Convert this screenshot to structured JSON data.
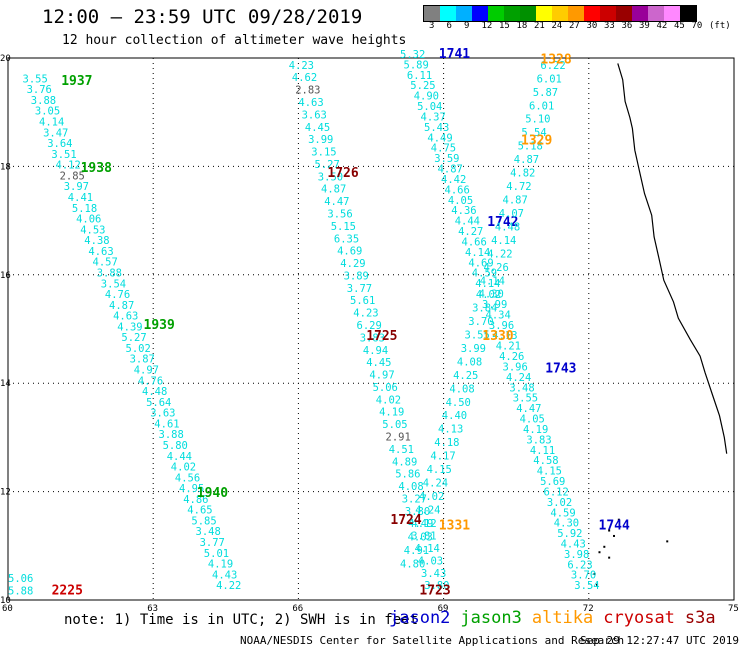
{
  "header": {
    "title": "12:00 – 23:59 UTC 09/28/2019",
    "subtitle": "12 hour collection of altimeter wave heights"
  },
  "scale": {
    "colors": [
      "#808080",
      "#00ffff",
      "#00b0ff",
      "#0000ff",
      "#00cc00",
      "#00a000",
      "#009000",
      "#ffff00",
      "#ffcc00",
      "#ff9900",
      "#ff0000",
      "#cc0000",
      "#990000",
      "#990099",
      "#cc66cc",
      "#ff88ff",
      "#000000"
    ],
    "labels": [
      "3",
      "6",
      "9",
      "12",
      "15",
      "18",
      "21",
      "24",
      "27",
      "30",
      "33",
      "36",
      "39",
      "42",
      "45",
      "70",
      "(ft)"
    ]
  },
  "axes": {
    "x_ticks": [
      "60",
      "63",
      "66",
      "69",
      "72",
      "75"
    ],
    "y_ticks": [
      "20",
      "18",
      "16",
      "14",
      "12",
      "10"
    ]
  },
  "footer": {
    "note": "note: 1) Time is in UTC; 2) SWH is in feet",
    "credit": "NOAA/NESDIS Center for Satellite Applications and Research",
    "timestamp": "Sep 29 12:27:47 UTC 2019"
  },
  "legend": [
    {
      "name": "jason2",
      "color": "#0000cc"
    },
    {
      "name": "jason3",
      "color": "#00a000"
    },
    {
      "name": "altika",
      "color": "#ff9900"
    },
    {
      "name": "cryosat",
      "color": "#cc0000"
    },
    {
      "name": "s3a",
      "color": "#990000"
    }
  ],
  "colors": {
    "swh": "#00dddd",
    "swh_low": "#555555",
    "jason2": "#0000cc",
    "jason3": "#00a000",
    "altika": "#ff9900",
    "cryosat": "#cc0000",
    "s3a": "#880000"
  },
  "tracks": [
    {
      "time": "1937",
      "satellite": "jason3",
      "time_lon": 61.1,
      "time_lat": 19.5,
      "start": [
        60.3,
        19.55
      ],
      "end": [
        64.3,
        10.2
      ],
      "values": [
        "3.55",
        "3.76",
        "3.88",
        "3.05",
        "4.14",
        "3.47",
        "3.64",
        "3.51",
        "4.12",
        "2.85",
        "3.97",
        "4.41",
        "5.18",
        "4.06",
        "4.53",
        "4.38",
        "4.63",
        "4.57",
        "3.88",
        "3.54",
        "4.76",
        "4.87",
        "4.63",
        "4.39",
        "5.27",
        "5.02",
        "3.87",
        "4.97",
        "4.76",
        "4.48",
        "5.64",
        "3.63",
        "4.61",
        "3.88",
        "5.80",
        "4.44",
        "4.02",
        "4.56",
        "4.95",
        "4.86",
        "4.65",
        "5.85",
        "3.48",
        "3.77",
        "5.01",
        "4.19",
        "4.43",
        "4.22"
      ]
    },
    {
      "time": "1938",
      "satellite": "jason3",
      "time_lon": 61.5,
      "time_lat": 17.9
    },
    {
      "time": "1939",
      "satellite": "jason3",
      "time_lon": 62.8,
      "time_lat": 15.0
    },
    {
      "time": "1940",
      "satellite": "jason3",
      "time_lon": 63.9,
      "time_lat": 11.9
    },
    {
      "time": "1726",
      "satellite": "s3a",
      "time_lon": 66.6,
      "time_lat": 17.8,
      "start": [
        65.8,
        19.8
      ],
      "end": [
        68.6,
        10.2
      ],
      "values": [
        "4.23",
        "4.62",
        "2.83",
        "4.63",
        "3.63",
        "4.45",
        "3.99",
        "3.15",
        "5.27",
        "3.50",
        "4.87",
        "4.47",
        "3.56",
        "5.15",
        "6.35",
        "4.69",
        "4.29",
        "3.89",
        "3.77",
        "5.61",
        "4.23",
        "6.29",
        "3.83",
        "4.94",
        "4.45",
        "4.97",
        "5.06",
        "4.02",
        "4.19",
        "5.05",
        "2.91",
        "4.51",
        "4.89",
        "5.86",
        "4.08",
        "3.27",
        "3.80",
        "4.49",
        "3.81",
        "4.14",
        "4.03",
        "3.43",
        "3.80"
      ]
    },
    {
      "time": "1725",
      "satellite": "s3a",
      "time_lon": 67.4,
      "time_lat": 14.8
    },
    {
      "time": "1741",
      "satellite": "jason2",
      "time_lon": 68.9,
      "time_lat": 20.0,
      "start": [
        68.1,
        20.0
      ],
      "end": [
        71.7,
        10.2
      ],
      "values": [
        "5.32",
        "5.89",
        "6.11",
        "5.25",
        "4.90",
        "5.04",
        "4.37",
        "5.43",
        "4.49",
        "4.75",
        "3.59",
        "4.87",
        "4.42",
        "4.66",
        "4.05",
        "4.36",
        "4.44",
        "4.27",
        "4.66",
        "4.14",
        "4.69",
        "4.59",
        "4.14",
        "4.30",
        "3.99",
        "4.34",
        "3.96",
        "4.13",
        "4.21",
        "4.26",
        "3.96",
        "4.24",
        "3.48",
        "3.55",
        "4.47",
        "4.05",
        "4.19",
        "3.83",
        "4.11",
        "4.58",
        "4.15",
        "5.69",
        "6.12",
        "3.02",
        "4.59",
        "4.30",
        "5.92",
        "4.43",
        "3.98",
        "6.23",
        "3.70",
        "3.54"
      ]
    },
    {
      "time": "1742",
      "satellite": "jason2",
      "time_lon": 69.9,
      "time_lat": 16.9
    },
    {
      "time": "1743",
      "satellite": "jason2",
      "time_lon": 71.1,
      "time_lat": 14.2
    },
    {
      "time": "1744",
      "satellite": "jason2",
      "time_lon": 72.2,
      "time_lat": 11.3
    },
    {
      "time": "1328",
      "satellite": "altika",
      "time_lon": 71.0,
      "time_lat": 19.9,
      "start": [
        71.0,
        19.8
      ],
      "end": [
        68.1,
        10.6
      ],
      "values": [
        "6.22",
        "6.01",
        "5.87",
        "6.01",
        "5.10",
        "5.54",
        "5.18",
        "4.87",
        "4.82",
        "4.72",
        "4.87",
        "4.07",
        "4.48",
        "4.14",
        "4.22",
        "4.26",
        "4.14",
        "4.02",
        "3.84",
        "3.70",
        "3.55",
        "3.99",
        "4.08",
        "4.25",
        "4.08",
        "4.50",
        "4.40",
        "4.13",
        "4.18",
        "4.17",
        "4.15",
        "4.24",
        "4.02",
        "4.24",
        "4.12",
        "4.03",
        "4.91",
        "4.80"
      ]
    },
    {
      "time": "1329",
      "satellite": "altika",
      "time_lon": 70.6,
      "time_lat": 18.4
    },
    {
      "time": "1330",
      "satellite": "altika",
      "time_lon": 69.8,
      "time_lat": 14.8
    },
    {
      "time": "1331",
      "satellite": "altika",
      "time_lon": 68.9,
      "time_lat": 11.3
    },
    {
      "time": "1724",
      "satellite": "s3a",
      "time_lon": 67.9,
      "time_lat": 11.4
    },
    {
      "time": "1723",
      "satellite": "s3a",
      "time_lon": 68.5,
      "time_lat": 10.1
    },
    {
      "time": "2225",
      "satellite": "cryosat",
      "time_lon": 60.9,
      "time_lat": 10.1,
      "start": [
        60.0,
        10.33
      ],
      "end": [
        60.0,
        10.1
      ],
      "values": [
        "5.06",
        "5.88"
      ]
    }
  ]
}
